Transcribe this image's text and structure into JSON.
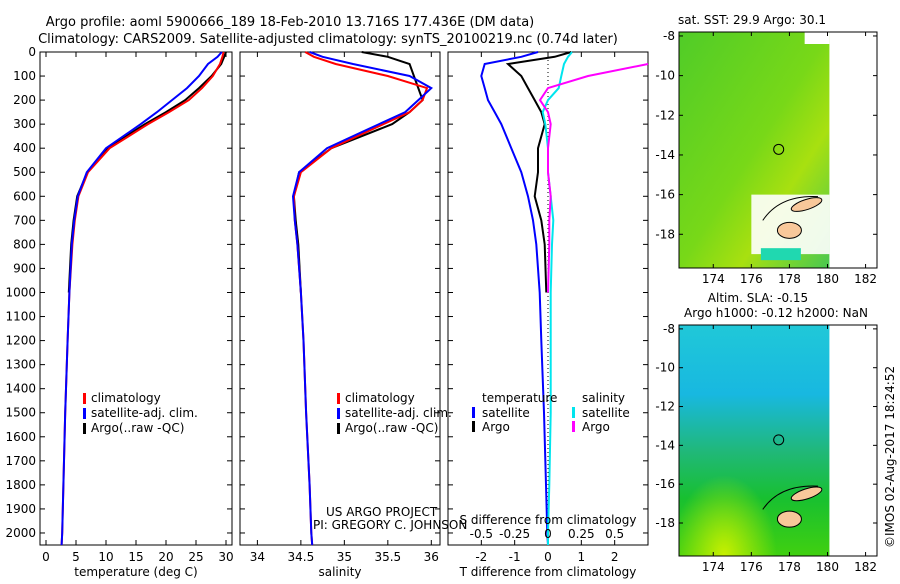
{
  "title_line1": "Argo profile: aoml 5900666_189 18-Feb-2010 13.716S 177.436E (DM data)",
  "title_line2": "Climatology: CARS2009. Satellite-adjusted climatology: synTS_20100219.nc (0.74d later)",
  "project_line1": "US ARGO PROJECT",
  "project_line2": "PI: GREGORY C. JOHNSON",
  "timestamp": "©IMOS 02-Aug-2017 18:24:52",
  "colors": {
    "climatology": "#ff0000",
    "satellite": "#0000ff",
    "argo": "#000000",
    "sal_satellite": "#00e5ee",
    "sal_argo": "#ff00ff",
    "land": "#f8c89a"
  },
  "chart_data": [
    {
      "type": "line",
      "id": "temperature",
      "xlabel": "temperature (deg C)",
      "ylabel": "",
      "xlim": [
        -1,
        31
      ],
      "ylim": [
        2050,
        0
      ],
      "xticks": [
        0,
        5,
        10,
        15,
        20,
        25,
        30
      ],
      "yticks": [
        0,
        100,
        200,
        300,
        400,
        500,
        600,
        700,
        800,
        900,
        1000,
        1100,
        1200,
        1300,
        1400,
        1500,
        1600,
        1700,
        1800,
        1900,
        2000
      ],
      "legend": [
        "climatology",
        "satellite-adj. clim.",
        "Argo(..raw -QC)"
      ],
      "legend_placement": "lower-center",
      "depth": [
        0,
        20,
        50,
        100,
        150,
        200,
        250,
        300,
        400,
        500,
        600,
        700,
        800,
        1000,
        1200,
        1500,
        1800,
        2000,
        2050
      ],
      "series": [
        {
          "name": "climatology",
          "values": [
            29.6,
            29.4,
            29.0,
            27.8,
            26.0,
            23.8,
            20.5,
            17.0,
            10.6,
            7.0,
            5.4,
            4.8,
            4.4,
            3.9,
            3.6,
            3.2,
            2.9,
            2.7,
            2.6
          ]
        },
        {
          "name": "satellite-adj. clim.",
          "values": [
            29.3,
            28.6,
            27.0,
            25.5,
            23.5,
            21.0,
            18.5,
            15.8,
            10.0,
            6.8,
            5.3,
            4.7,
            4.3,
            3.9,
            3.6,
            3.2,
            2.9,
            2.7,
            2.6
          ]
        },
        {
          "name": "Argo(..raw -QC)",
          "values": [
            30.0,
            29.7,
            29.2,
            27.6,
            25.5,
            23.2,
            20.0,
            16.5,
            10.2,
            6.9,
            5.2,
            4.6,
            4.2,
            3.8
          ]
        }
      ]
    },
    {
      "type": "line",
      "id": "salinity",
      "xlabel": "salinity",
      "ylabel": "",
      "xlim": [
        33.8,
        36.1
      ],
      "ylim": [
        2050,
        0
      ],
      "xticks": [
        34,
        34.5,
        35,
        35.5,
        36
      ],
      "legend": [
        "climatology",
        "satellite-adj. clim.",
        "Argo(..raw -QC)"
      ],
      "legend_placement": "lower-center",
      "depth": [
        0,
        20,
        50,
        100,
        150,
        200,
        250,
        300,
        400,
        500,
        600,
        700,
        800,
        1000,
        1200,
        1500,
        1800,
        2000,
        2050
      ],
      "series": [
        {
          "name": "climatology",
          "values": [
            34.55,
            34.65,
            34.9,
            35.5,
            35.95,
            35.9,
            35.75,
            35.45,
            34.85,
            34.5,
            34.42,
            34.43,
            34.46,
            34.5,
            34.53,
            34.56,
            34.6,
            34.62,
            34.63
          ]
        },
        {
          "name": "satellite-adj. clim.",
          "values": [
            34.6,
            34.75,
            35.1,
            35.75,
            36.0,
            35.85,
            35.7,
            35.4,
            34.8,
            34.48,
            34.41,
            34.43,
            34.46,
            34.5,
            34.53,
            34.56,
            34.6,
            34.62,
            34.63
          ]
        },
        {
          "name": "Argo(..raw -QC)",
          "values": [
            35.2,
            35.5,
            35.75,
            35.8,
            35.85,
            35.9,
            35.75,
            35.55,
            34.85,
            34.48,
            34.42,
            34.44,
            34.47,
            34.5
          ]
        }
      ]
    },
    {
      "type": "line",
      "id": "difference",
      "xlabel": "T difference from climatology",
      "x2label": "S difference from climatology",
      "xlim": [
        -3,
        3
      ],
      "x2lim": [
        -0.75,
        0.75
      ],
      "ylim": [
        2050,
        0
      ],
      "xticks": [
        -2,
        -1,
        0,
        1,
        2
      ],
      "x2ticks": [
        -0.5,
        -0.25,
        0,
        0.25,
        0.5
      ],
      "x2ticklabels": [
        "-0.5",
        "-0.25",
        "0",
        "0.25",
        "0.5"
      ],
      "legend_temperature": {
        "title": "temperature",
        "items": [
          "satellite",
          "Argo"
        ]
      },
      "legend_salinity": {
        "title": "salinity",
        "items": [
          "satellite",
          "Argo"
        ]
      },
      "depth": [
        0,
        20,
        50,
        100,
        150,
        200,
        250,
        300,
        400,
        500,
        600,
        700,
        800,
        1000,
        1200,
        1500,
        1800,
        2000,
        2050
      ],
      "series": [
        {
          "name": "temperature satellite",
          "axis": "T",
          "values": [
            -0.3,
            -0.8,
            -1.9,
            -2.0,
            -1.9,
            -1.8,
            -1.6,
            -1.4,
            -1.1,
            -0.8,
            -0.6,
            -0.45,
            -0.35,
            -0.25,
            -0.2,
            -0.12,
            -0.06,
            -0.02,
            0
          ]
        },
        {
          "name": "temperature Argo",
          "axis": "T",
          "values": [
            0.7,
            0.2,
            -1.2,
            -0.8,
            -0.6,
            -0.4,
            -0.2,
            -0.1,
            -0.3,
            -0.3,
            -0.4,
            -0.2,
            -0.1,
            -0.05
          ]
        },
        {
          "name": "salinity satellite",
          "axis": "S",
          "values": [
            0.18,
            0.15,
            0.12,
            0.1,
            0.08,
            0.0,
            -0.04,
            -0.02,
            0.0,
            0.0,
            0.02,
            0.04,
            0.03,
            0.02,
            0.02,
            0.02,
            0.01,
            0.0,
            0.0
          ]
        },
        {
          "name": "salinity Argo",
          "axis": "S",
          "values": [
            null,
            null,
            0.75,
            0.3,
            0.0,
            -0.06,
            0.0,
            0.02,
            0.0,
            0.0,
            0.02,
            0.01,
            0.01,
            0.0
          ]
        }
      ]
    },
    {
      "type": "heatmap",
      "id": "sst_map",
      "title": "sat. SST: 29.9 Argo: 30.1",
      "xlim": [
        172.2,
        182.6
      ],
      "ylim": [
        -19.7,
        -7.8
      ],
      "xticks": [
        174,
        176,
        178,
        180,
        182
      ],
      "yticks": [
        -8,
        -10,
        -12,
        -14,
        -16,
        -18
      ],
      "argo_position": {
        "lon": 177.436,
        "lat": -13.716
      }
    },
    {
      "type": "heatmap",
      "id": "sla_map",
      "title_line1": "Altim. SLA: -0.15",
      "title_line2": "Argo h1000: -0.12 h2000: NaN",
      "xlim": [
        172.2,
        182.6
      ],
      "ylim": [
        -19.7,
        -7.8
      ],
      "xticks": [
        174,
        176,
        178,
        180,
        182
      ],
      "yticks": [
        -8,
        -10,
        -12,
        -14,
        -16,
        -18
      ],
      "argo_position": {
        "lon": 177.436,
        "lat": -13.716
      }
    }
  ]
}
